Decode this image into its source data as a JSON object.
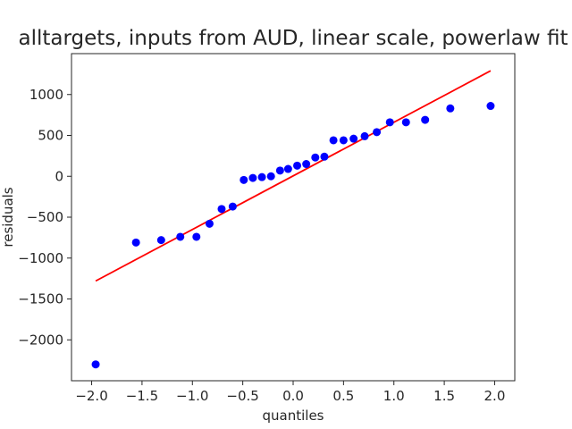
{
  "chart_data": {
    "type": "scatter",
    "title": "alltargets, inputs from AUD, linear scale, powerlaw fit",
    "xlabel": "quantiles",
    "ylabel": "residuals",
    "xlim": [
      -2.2,
      2.2
    ],
    "ylim": [
      -2500,
      1500
    ],
    "xticks": [
      -2.0,
      -1.5,
      -1.0,
      -0.5,
      0.0,
      0.5,
      1.0,
      1.5,
      2.0
    ],
    "xtick_labels": [
      "−2.0",
      "−1.5",
      "−1.0",
      "−0.5",
      "0.0",
      "0.5",
      "1.0",
      "1.5",
      "2.0"
    ],
    "yticks": [
      -2000,
      -1500,
      -1000,
      -500,
      0,
      500,
      1000
    ],
    "ytick_labels": [
      "−2000",
      "−1500",
      "−1000",
      "−500",
      "0",
      "500",
      "1000"
    ],
    "grid": false,
    "series": [
      {
        "type": "scatter",
        "color": "#0000ff",
        "x": [
          -1.96,
          -1.56,
          -1.31,
          -1.12,
          -0.96,
          -0.83,
          -0.71,
          -0.6,
          -0.49,
          -0.4,
          -0.31,
          -0.22,
          -0.13,
          -0.05,
          0.04,
          0.13,
          0.22,
          0.31,
          0.4,
          0.5,
          0.6,
          0.71,
          0.83,
          0.96,
          1.12,
          1.31,
          1.56,
          1.96
        ],
        "y": [
          -2300,
          -810,
          -780,
          -740,
          -740,
          -580,
          -400,
          -370,
          -45,
          -20,
          -10,
          0,
          70,
          90,
          130,
          150,
          230,
          240,
          440,
          440,
          460,
          490,
          540,
          660,
          660,
          690,
          830,
          860
        ]
      },
      {
        "type": "line",
        "color": "#ff0000",
        "x": [
          -1.96,
          1.96
        ],
        "y": [
          -1280,
          1290
        ]
      }
    ]
  }
}
